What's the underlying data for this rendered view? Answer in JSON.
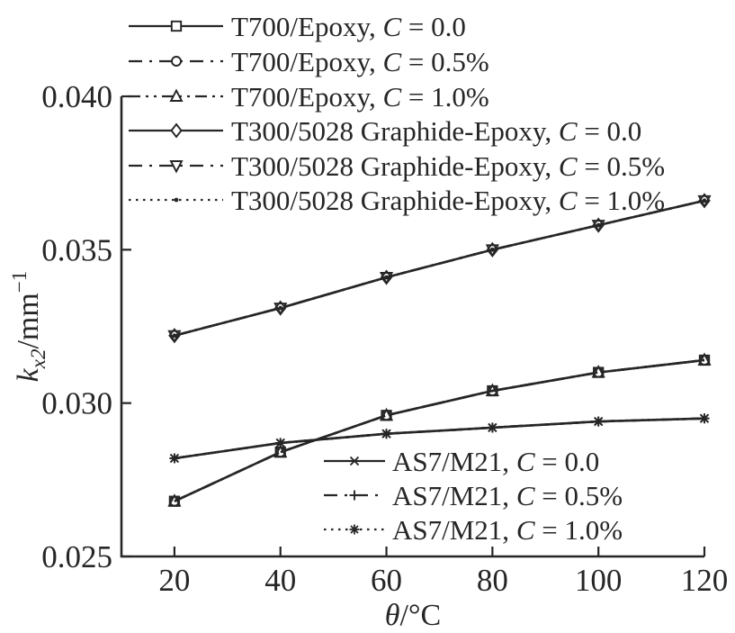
{
  "figure": {
    "background": "#ffffff",
    "ink": "#262626"
  },
  "chart_data": {
    "type": "line",
    "x": [
      20,
      40,
      60,
      80,
      100,
      120
    ],
    "xlabel": "θ/°C",
    "xlabel_parts": {
      "italic": "θ",
      "rest": "/°C"
    },
    "ylabel": "k_x2/mm^-1",
    "ylabel_parts": {
      "base": "k",
      "sub": "x2",
      "mid": "/mm",
      "sup": "−1"
    },
    "xlim": [
      10,
      120
    ],
    "ylim": [
      0.025,
      0.04
    ],
    "xticks": [
      20,
      40,
      60,
      80,
      100,
      120
    ],
    "xtick_labels": [
      "20",
      "40",
      "60",
      "80",
      "100",
      "120"
    ],
    "yticks": [
      0.025,
      0.03,
      0.035,
      0.04
    ],
    "ytick_labels": [
      "0.025",
      "0.030",
      "0.035",
      "0.040"
    ],
    "grid": false,
    "legend_upper": {
      "position": "top-left",
      "entries": [
        0,
        1,
        2,
        3,
        4,
        5
      ]
    },
    "legend_lower": {
      "position": "inside-bottom-right",
      "entries": [
        6,
        7,
        8
      ]
    },
    "series": [
      {
        "label": "T700/Epoxy, C = 0.0",
        "line": "solid",
        "marker": "square",
        "values": [
          0.0268,
          0.0284,
          0.0296,
          0.0304,
          0.031,
          0.0314
        ]
      },
      {
        "label": "T700/Epoxy, C = 0.5%",
        "line": "dash-dot",
        "marker": "circle",
        "values": [
          0.0268,
          0.0284,
          0.0296,
          0.0304,
          0.031,
          0.0314
        ]
      },
      {
        "label": "T700/Epoxy, C = 1.0%",
        "line": "dash-dot-dot",
        "marker": "triangle-up",
        "values": [
          0.0268,
          0.0284,
          0.0296,
          0.0304,
          0.031,
          0.0314
        ]
      },
      {
        "label": "T300/5028 Graphide-Epoxy, C = 0.0",
        "line": "solid",
        "marker": "diamond",
        "values": [
          0.0322,
          0.0331,
          0.0341,
          0.035,
          0.0358,
          0.0366
        ]
      },
      {
        "label": "T300/5028 Graphide-Epoxy, C = 0.5%",
        "line": "dash-dot",
        "marker": "triangle-down",
        "values": [
          0.0322,
          0.0331,
          0.0341,
          0.035,
          0.0358,
          0.0366
        ]
      },
      {
        "label": "T300/5028 Graphide-Epoxy, C = 1.0%",
        "line": "dotted",
        "marker": "dot",
        "values": [
          0.0322,
          0.0331,
          0.0341,
          0.035,
          0.0358,
          0.0366
        ]
      },
      {
        "label": "AS7/M21, C = 0.0",
        "line": "solid",
        "marker": "x",
        "values": [
          0.0282,
          0.0287,
          0.029,
          0.0292,
          0.0294,
          0.0295
        ]
      },
      {
        "label": "AS7/M21, C = 0.5%",
        "line": "dash-dot",
        "marker": "plus",
        "values": [
          0.0282,
          0.0287,
          0.029,
          0.0292,
          0.0294,
          0.0295
        ]
      },
      {
        "label": "AS7/M21, C = 1.0%",
        "line": "dotted",
        "marker": "asterisk",
        "values": [
          0.0282,
          0.0287,
          0.029,
          0.0292,
          0.0294,
          0.0295
        ]
      }
    ]
  }
}
